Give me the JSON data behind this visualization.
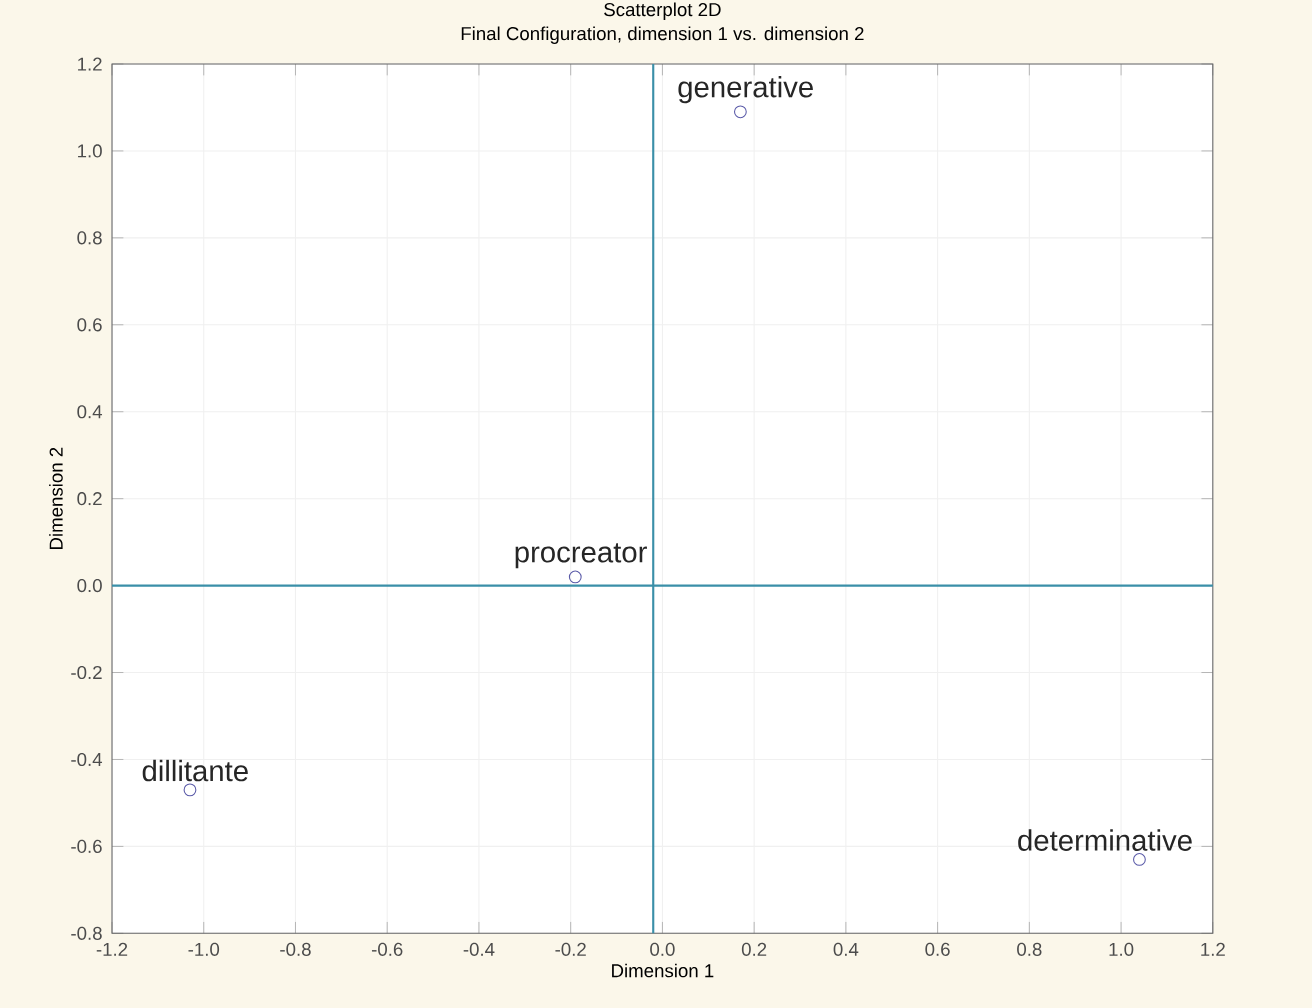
{
  "chart_data": {
    "type": "scatter",
    "title": "Scatterplot 2D",
    "subtitle": "Final Configuration, dimension 1  vs. dimension 2",
    "xlabel": "Dimension 1",
    "ylabel": "Dimension 2",
    "x": [
      0.17,
      -0.19,
      -1.03,
      1.04
    ],
    "series": [
      {
        "color": "#5a5aa8",
        "values": [
          1.09,
          0.02,
          -0.47,
          -0.63
        ]
      }
    ],
    "annotations": [
      {
        "text": "generative",
        "x": 0.17,
        "y": 1.09
      },
      {
        "text": "procreator",
        "x": -0.19,
        "y": 0.02
      },
      {
        "text": "dillitante",
        "x": -1.03,
        "y": -0.47
      },
      {
        "text": "determinative",
        "x": 1.04,
        "y": -0.63
      }
    ],
    "ref_lines": [
      {
        "axis": "x",
        "value": -0.02,
        "color": "#3a8fa8"
      },
      {
        "axis": "y",
        "value": 0,
        "color": "#3a8fa8"
      }
    ],
    "xlim": [
      -1.2,
      1.2
    ],
    "ylim": [
      -0.8,
      1.2
    ],
    "xticks": [
      {
        "value": -1.2,
        "label": "-1.2"
      },
      {
        "value": -1.0,
        "label": "-1.0"
      },
      {
        "value": -0.8,
        "label": "-0.8"
      },
      {
        "value": -0.6,
        "label": "-0.6"
      },
      {
        "value": -0.4,
        "label": "-0.4"
      },
      {
        "value": -0.2,
        "label": "-0.2"
      },
      {
        "value": 0,
        "label": "0.0"
      },
      {
        "value": 0.2,
        "label": "0.2"
      },
      {
        "value": 0.4,
        "label": "0.4"
      },
      {
        "value": 0.6,
        "label": "0.6"
      },
      {
        "value": 0.8,
        "label": "0.8"
      },
      {
        "value": 1.0,
        "label": "1.0"
      },
      {
        "value": 1.2,
        "label": "1.2"
      }
    ],
    "yticks": [
      {
        "value": -0.8,
        "label": "-0.8"
      },
      {
        "value": -0.6,
        "label": "-0.6"
      },
      {
        "value": -0.4,
        "label": "-0.4"
      },
      {
        "value": -0.2,
        "label": "-0.2"
      },
      {
        "value": 0,
        "label": "0.0"
      },
      {
        "value": 0.2,
        "label": "0.2"
      },
      {
        "value": 0.4,
        "label": "0.4"
      },
      {
        "value": 0.6,
        "label": "0.6"
      },
      {
        "value": 0.8,
        "label": "0.8"
      },
      {
        "value": 1.0,
        "label": "1.0"
      },
      {
        "value": 1.2,
        "label": "1.2"
      }
    ],
    "grid": true,
    "marker": "circle"
  }
}
